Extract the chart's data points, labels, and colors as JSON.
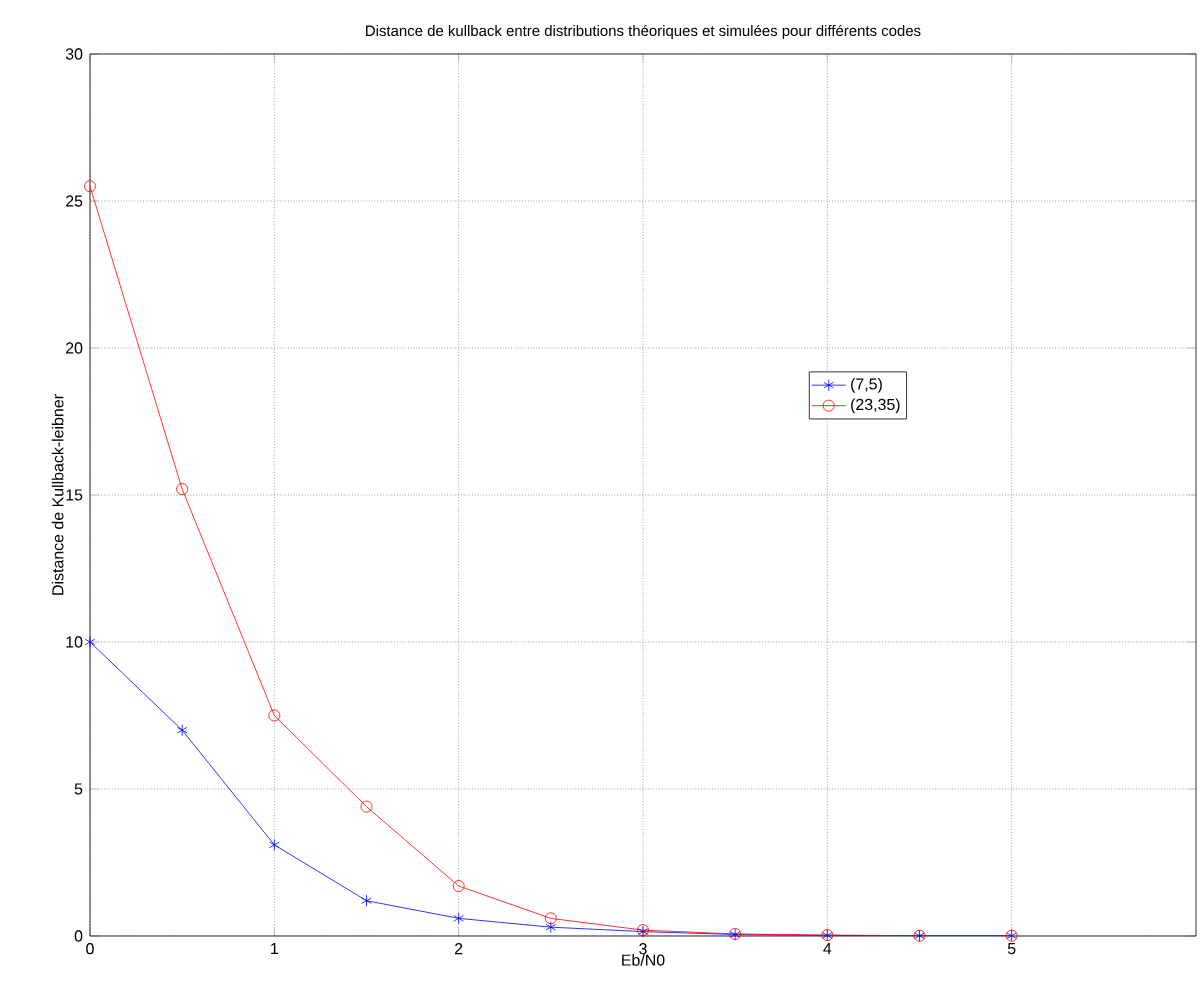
{
  "chart_data": {
    "type": "line",
    "title": "Distance de kullback entre distributions théoriques et simulées pour différents codes",
    "xlabel": "Eb/N0",
    "ylabel": "Distance de Kullback-leibner",
    "x": [
      0,
      0.5,
      1,
      1.5,
      2,
      2.5,
      3,
      3.5,
      4,
      4.5,
      5
    ],
    "series": [
      {
        "name": "(7,5)",
        "color": "#0000ff",
        "marker": "cross",
        "values": [
          10,
          7,
          3.1,
          1.2,
          0.6,
          0.3,
          0.15,
          0.05,
          0.02,
          0.01,
          0.01
        ]
      },
      {
        "name": "(23,35)",
        "color": "#ff0000",
        "marker": "circle",
        "values": [
          25.5,
          15.2,
          7.5,
          4.4,
          1.7,
          0.6,
          0.2,
          0.07,
          0.03,
          0.01,
          0.01
        ]
      }
    ],
    "xlim": [
      0,
      6
    ],
    "ylim": [
      0,
      30
    ],
    "xticks": [
      0,
      1,
      2,
      3,
      4,
      5
    ],
    "yticks": [
      0,
      5,
      10,
      15,
      20,
      25,
      30
    ],
    "grid": true,
    "legend": "right",
    "line_style": "solid"
  }
}
